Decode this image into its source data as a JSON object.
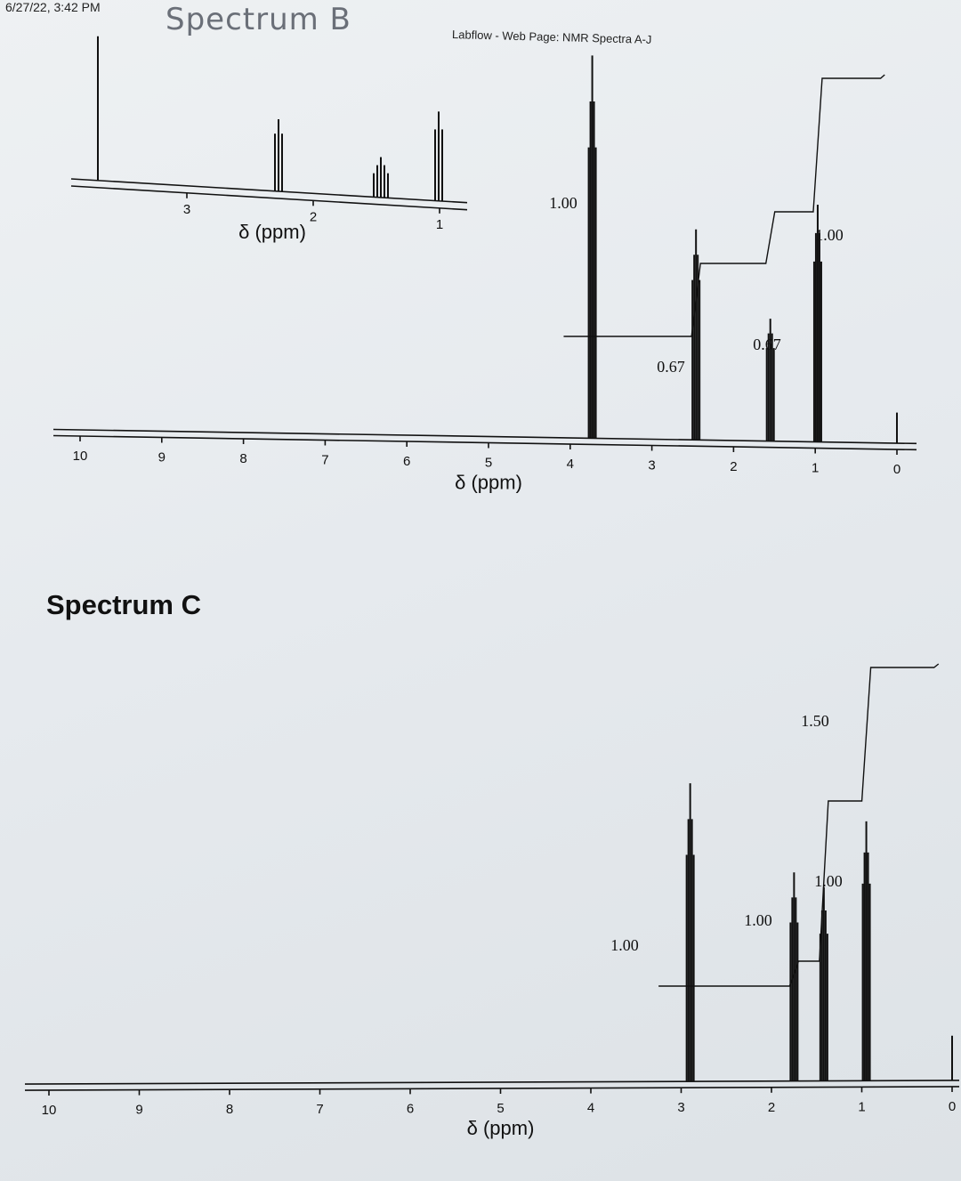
{
  "header": {
    "timestamp": "6/27/22, 3:42 PM",
    "handwritten_title": "Spectrum B",
    "page_title": "Labflow - Web Page: NMR Spectra A-J"
  },
  "chart_data": [
    {
      "type": "line",
      "title": "",
      "xlabel": "δ (ppm)",
      "xlim": [
        10,
        0
      ],
      "x_ticks": [
        "10",
        "9",
        "8",
        "7",
        "6",
        "5",
        "4",
        "3",
        "2",
        "1",
        "0"
      ],
      "peaks": [
        {
          "ppm": 3.73,
          "rel_height": 1.0
        },
        {
          "ppm": 2.46,
          "rel_height": 0.55
        },
        {
          "ppm": 1.55,
          "rel_height": 0.32
        },
        {
          "ppm": 0.97,
          "rel_height": 0.62
        },
        {
          "ppm": 0.0,
          "rel_height": 0.08
        }
      ],
      "integrations": [
        {
          "ppm": 3.73,
          "label": "1.00"
        },
        {
          "ppm": 2.46,
          "label": "0.67"
        },
        {
          "ppm": 1.55,
          "label": "0.67"
        },
        {
          "ppm": 0.97,
          "label": "1.00"
        }
      ],
      "inset": {
        "xlabel": "δ (ppm)",
        "x_ticks": [
          "3",
          "2",
          "1"
        ]
      }
    },
    {
      "type": "line",
      "title": "Spectrum C",
      "xlabel": "δ (ppm)",
      "xlim": [
        10,
        0
      ],
      "x_ticks": [
        "10",
        "9",
        "8",
        "7",
        "6",
        "5",
        "4",
        "3",
        "2",
        "1",
        "0"
      ],
      "peaks": [
        {
          "ppm": 2.9,
          "rel_height": 1.0
        },
        {
          "ppm": 1.75,
          "rel_height": 0.7
        },
        {
          "ppm": 1.42,
          "rel_height": 0.65
        },
        {
          "ppm": 0.95,
          "rel_height": 0.87
        },
        {
          "ppm": 0.0,
          "rel_height": 0.15
        }
      ],
      "integrations": [
        {
          "ppm": 2.9,
          "label": "1.00"
        },
        {
          "ppm": 1.75,
          "label": "1.00"
        },
        {
          "ppm": 1.42,
          "label": "1.00"
        },
        {
          "ppm": 0.95,
          "label": "1.50"
        }
      ]
    }
  ]
}
